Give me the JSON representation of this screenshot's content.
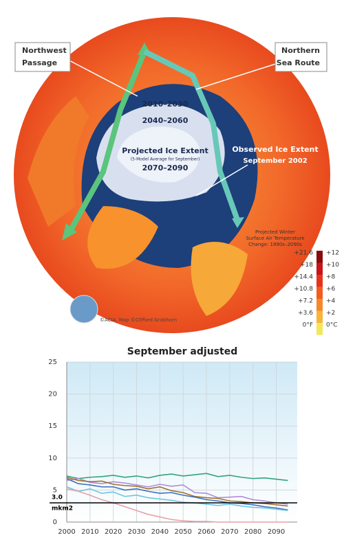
{
  "map": {
    "northwest_passage": [
      "Northwest",
      "Passage"
    ],
    "northern_sea_route": [
      "Northern",
      "Sea Route"
    ],
    "period_1": "2010–2030",
    "period_2": "2040–2060",
    "projected_title": "Projected Ice Extent",
    "projected_note": "(5-Model Average for September)",
    "period_3": "2070–2090",
    "observed": [
      "Observed Ice Extent",
      "September 2002"
    ],
    "temperature_title": [
      "Projected Winter",
      "Surface Air Temperature",
      "Change: 1990s–2090s"
    ],
    "scale_f": [
      "+21.6",
      "+18",
      "+14.4",
      "+10.8",
      "+7.2",
      "+3.6",
      "0°F"
    ],
    "scale_c": [
      "+12",
      "+10",
      "+8",
      "+6",
      "+4",
      "+2",
      "0°C"
    ],
    "scale_colors": [
      "#8b0a0a",
      "#c8141a",
      "#e8331c",
      "#f25d1f",
      "#f6882a",
      "#f8b53a",
      "#f2e85a"
    ],
    "credit": "©ACIA, Map ©Clifford Grabhorn"
  },
  "chart_data": {
    "type": "line",
    "title": "September adjusted",
    "x": [
      2000,
      2005,
      2010,
      2015,
      2020,
      2025,
      2030,
      2035,
      2040,
      2045,
      2050,
      2055,
      2060,
      2065,
      2070,
      2075,
      2080,
      2085,
      2090,
      2095
    ],
    "xlim": [
      2000,
      2099
    ],
    "xticks": [
      2000,
      2010,
      2020,
      2030,
      2040,
      2050,
      2060,
      2070,
      2080,
      2090
    ],
    "ylim": [
      0,
      25
    ],
    "yticks": [
      0,
      5,
      10,
      15,
      20,
      25
    ],
    "grid": true,
    "reference_line": {
      "value": 3.0,
      "label": [
        "3.0",
        "mkm2"
      ],
      "color": "#000000"
    },
    "series": [
      {
        "color": "#2fa37a",
        "values": [
          7.2,
          6.8,
          7.0,
          7.1,
          7.3,
          7.0,
          7.2,
          6.9,
          7.3,
          7.5,
          7.2,
          7.4,
          7.6,
          7.1,
          7.3,
          7.0,
          6.8,
          6.9,
          6.7,
          6.5
        ]
      },
      {
        "color": "#b08ad8",
        "values": [
          6.5,
          6.8,
          6.2,
          6.0,
          6.3,
          6.1,
          5.8,
          5.5,
          5.9,
          5.6,
          5.8,
          4.6,
          4.5,
          3.8,
          3.9,
          4.0,
          3.5,
          3.3,
          3.0,
          2.8
        ]
      },
      {
        "color": "#a0702a",
        "values": [
          7.0,
          6.5,
          6.3,
          6.4,
          5.9,
          5.7,
          5.6,
          5.2,
          5.5,
          4.9,
          4.6,
          4.0,
          3.8,
          3.7,
          3.3,
          3.2,
          3.0,
          2.9,
          2.7,
          2.5
        ]
      },
      {
        "color": "#3a6fc0",
        "values": [
          6.8,
          6.0,
          5.8,
          5.5,
          5.5,
          5.0,
          5.2,
          4.8,
          4.5,
          4.6,
          4.2,
          3.9,
          3.5,
          3.3,
          3.0,
          2.9,
          2.7,
          2.4,
          2.2,
          1.9
        ]
      },
      {
        "color": "#6cc6e0",
        "values": [
          5.5,
          4.8,
          5.2,
          4.5,
          4.7,
          4.0,
          4.2,
          3.8,
          3.6,
          3.4,
          3.1,
          3.0,
          2.8,
          2.6,
          2.8,
          2.5,
          2.3,
          2.2,
          2.0,
          1.8
        ]
      },
      {
        "color": "#e8a0a8",
        "values": [
          5.2,
          4.8,
          4.2,
          3.5,
          3.0,
          2.4,
          1.8,
          1.2,
          0.8,
          0.4,
          0.2,
          0.1,
          0.1,
          0,
          0,
          0,
          0,
          0,
          0,
          0
        ]
      }
    ]
  }
}
